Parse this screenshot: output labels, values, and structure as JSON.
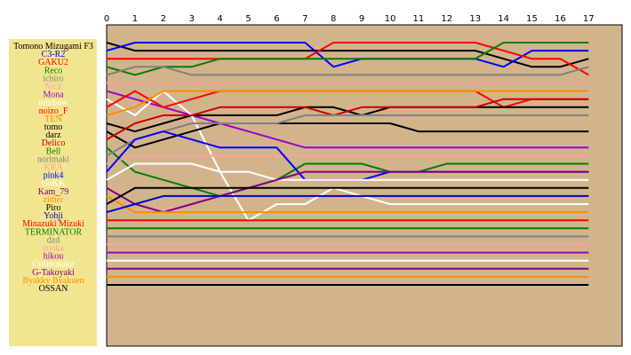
{
  "chart_data": {
    "type": "line",
    "x": [
      0,
      1,
      2,
      3,
      4,
      5,
      6,
      7,
      8,
      9,
      10,
      11,
      12,
      13,
      14,
      15,
      16,
      17
    ],
    "legend_placement": "left",
    "background": "#d2b48c",
    "legend_background": "#f2e58f",
    "series": [
      {
        "name": "Tomono Mizugami F3",
        "color": "#000000",
        "values": [
          1,
          2,
          2,
          2,
          2,
          2,
          2,
          2,
          2,
          2,
          2,
          2,
          2,
          2,
          3,
          4,
          4,
          3
        ]
      },
      {
        "name": "C3-R2",
        "color": "#0000ff",
        "values": [
          2,
          1,
          1,
          1,
          1,
          1,
          1,
          1,
          4,
          3,
          3,
          3,
          3,
          3,
          4,
          2,
          2,
          2
        ]
      },
      {
        "name": "GAKU2",
        "color": "#ff0000",
        "values": [
          3,
          3,
          3,
          3,
          3,
          3,
          3,
          3,
          1,
          1,
          1,
          1,
          1,
          1,
          2,
          3,
          3,
          5
        ]
      },
      {
        "name": "Reco",
        "color": "#008000",
        "values": [
          4,
          5,
          4,
          4,
          3,
          3,
          3,
          3,
          3,
          3,
          3,
          3,
          3,
          3,
          1,
          1,
          1,
          1
        ]
      },
      {
        "name": "ichiro",
        "color": "#808080",
        "values": [
          5,
          4,
          4,
          5,
          5,
          5,
          5,
          5,
          5,
          5,
          5,
          5,
          5,
          5,
          5,
          5,
          5,
          4
        ]
      },
      {
        "name": "Nick",
        "color": "#ffa0a0",
        "values": [
          6,
          6,
          6,
          6,
          6,
          6,
          6,
          6,
          6,
          6,
          6,
          6,
          6,
          6,
          6,
          6,
          6,
          6
        ]
      },
      {
        "name": "Mona",
        "color": "#9900cc",
        "values": [
          7,
          8,
          9,
          10,
          11,
          12,
          13,
          14,
          14,
          14,
          14,
          14,
          14,
          14,
          14,
          14,
          14,
          14
        ]
      },
      {
        "name": "tombow",
        "color": "#ffffff",
        "values": [
          8,
          10,
          7,
          10,
          17,
          23,
          21,
          21,
          19,
          20,
          21,
          21,
          21,
          21,
          21,
          21,
          21,
          21
        ]
      },
      {
        "name": "noizo_F",
        "color": "#ff0000",
        "values": [
          9,
          7,
          9,
          8,
          7,
          7,
          7,
          7,
          7,
          7,
          7,
          7,
          7,
          7,
          9,
          8,
          8,
          8
        ]
      },
      {
        "name": "TEN",
        "color": "#ff8c00",
        "values": [
          10,
          9,
          7,
          7,
          7,
          7,
          7,
          7,
          7,
          7,
          7,
          7,
          7,
          7,
          7,
          7,
          7,
          7
        ]
      },
      {
        "name": "tomo",
        "color": "#000000",
        "values": [
          11,
          12,
          11,
          10,
          10,
          10,
          10,
          9,
          9,
          10,
          9,
          9,
          9,
          9,
          9,
          9,
          9,
          9
        ]
      },
      {
        "name": "darz",
        "color": "#000000",
        "values": [
          12,
          14,
          13,
          12,
          11,
          11,
          11,
          11,
          11,
          11,
          11,
          12,
          12,
          12,
          12,
          12,
          12,
          12
        ]
      },
      {
        "name": "Delico",
        "color": "#cc0000",
        "values": [
          13,
          11,
          10,
          10,
          9,
          9,
          9,
          9,
          10,
          9,
          9,
          9,
          9,
          9,
          8,
          8,
          8,
          8
        ]
      },
      {
        "name": "Bell",
        "color": "#008000",
        "values": [
          14,
          17,
          18,
          19,
          20,
          19,
          18,
          16,
          16,
          16,
          17,
          17,
          16,
          16,
          16,
          16,
          16,
          16
        ]
      },
      {
        "name": "norimaki",
        "color": "#808080",
        "values": [
          15,
          13,
          12,
          11,
          11,
          11,
          11,
          10,
          10,
          10,
          10,
          10,
          10,
          10,
          10,
          10,
          10,
          10
        ]
      },
      {
        "name": "KRA",
        "color": "#ffa0a0",
        "values": [
          16,
          15,
          15,
          15,
          15,
          15,
          15,
          15,
          15,
          15,
          15,
          15,
          15,
          15,
          15,
          15,
          15,
          15
        ]
      },
      {
        "name": "pink4",
        "color": "#0000ff",
        "values": [
          17,
          13,
          12,
          13,
          14,
          14,
          14,
          18,
          18,
          18,
          17,
          17,
          17,
          17,
          17,
          17,
          17,
          17
        ]
      },
      {
        "name": "GoKK",
        "color": "#ffffff",
        "values": [
          18,
          16,
          16,
          16,
          17,
          17,
          18,
          18,
          18,
          18,
          18,
          18,
          18,
          18,
          18,
          18,
          18,
          18
        ]
      },
      {
        "name": "Kam_79",
        "color": "#800080",
        "values": [
          19,
          21,
          22,
          21,
          20,
          19,
          18,
          17,
          17,
          17,
          17,
          17,
          17,
          17,
          17,
          17,
          17,
          17
        ]
      },
      {
        "name": "zither",
        "color": "#ff8c00",
        "values": [
          20,
          22,
          22,
          22,
          22,
          22,
          22,
          22,
          22,
          22,
          22,
          22,
          22,
          22,
          22,
          22,
          22,
          22
        ]
      },
      {
        "name": "Piro",
        "color": "#000000",
        "values": [
          21,
          19,
          19,
          19,
          19,
          19,
          19,
          19,
          19,
          19,
          19,
          19,
          19,
          19,
          19,
          19,
          19,
          19
        ]
      },
      {
        "name": "Yohji",
        "color": "#0000cc",
        "values": [
          22,
          21,
          20,
          20,
          20,
          20,
          20,
          20,
          20,
          20,
          20,
          20,
          20,
          20,
          20,
          20,
          20,
          20
        ]
      },
      {
        "name": "Minazuki Mizuki",
        "color": "#ff0000",
        "values": [
          23,
          23,
          23,
          23,
          23,
          23,
          23,
          23,
          23,
          23,
          23,
          23,
          23,
          23,
          23,
          23,
          23,
          23
        ]
      },
      {
        "name": "TERMINATOR",
        "color": "#008000",
        "values": [
          24,
          24,
          24,
          24,
          24,
          24,
          24,
          24,
          24,
          24,
          24,
          24,
          24,
          24,
          24,
          24,
          24,
          24
        ]
      },
      {
        "name": "dzd",
        "color": "#808080",
        "values": [
          25,
          25,
          25,
          25,
          25,
          25,
          25,
          25,
          25,
          25,
          25,
          25,
          25,
          25,
          25,
          25,
          25,
          25
        ]
      },
      {
        "name": "zooka",
        "color": "#ffa0a0",
        "values": [
          26,
          26,
          26,
          26,
          26,
          26,
          26,
          26,
          26,
          26,
          26,
          26,
          26,
          26,
          26,
          26,
          26,
          26
        ]
      },
      {
        "name": "hikou",
        "color": "#9900cc",
        "values": [
          27,
          27,
          27,
          27,
          27,
          27,
          27,
          27,
          27,
          27,
          27,
          27,
          27,
          27,
          27,
          27,
          27,
          27
        ]
      },
      {
        "name": "Cosmosuke",
        "color": "#ffffff",
        "values": [
          28,
          28,
          28,
          28,
          28,
          28,
          28,
          28,
          28,
          28,
          28,
          28,
          28,
          28,
          28,
          28,
          28,
          28
        ]
      },
      {
        "name": "G-Takoyaki",
        "color": "#800080",
        "values": [
          29,
          29,
          29,
          29,
          29,
          29,
          29,
          29,
          29,
          29,
          29,
          29,
          29,
          29,
          29,
          29,
          29,
          29
        ]
      },
      {
        "name": "Byakky Byakuen",
        "color": "#ff8c00",
        "values": [
          30,
          30,
          30,
          30,
          30,
          30,
          30,
          30,
          30,
          30,
          30,
          30,
          30,
          30,
          30,
          30,
          30,
          30
        ]
      },
      {
        "name": "OSSAN",
        "color": "#000000",
        "values": [
          31,
          31,
          31,
          31,
          31,
          31,
          31,
          31,
          31,
          31,
          31,
          31,
          31,
          31,
          31,
          31,
          31,
          31
        ]
      }
    ]
  }
}
